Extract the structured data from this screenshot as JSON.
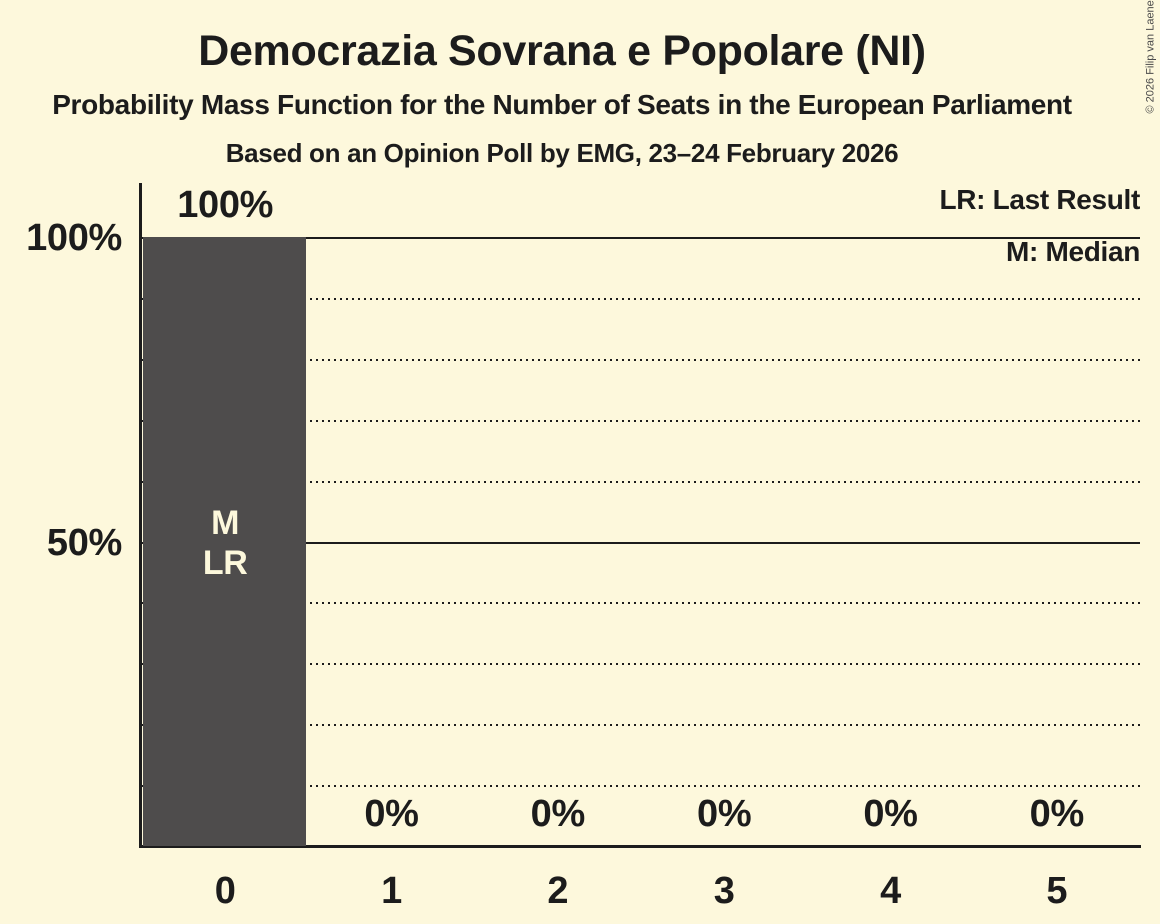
{
  "chart_data": {
    "type": "bar",
    "title": "Democrazia Sovrana e Popolare (NI)",
    "subtitle": "Probability Mass Function for the Number of Seats in the European Parliament",
    "source_line": "Based on an Opinion Poll by EMG, 23–24 February 2026",
    "categories": [
      "0",
      "1",
      "2",
      "3",
      "4",
      "5"
    ],
    "values": [
      100,
      0,
      0,
      0,
      0,
      0
    ],
    "value_labels": [
      "100%",
      "0%",
      "0%",
      "0%",
      "0%",
      "0%"
    ],
    "bar_annotations": [
      [
        "M",
        "LR"
      ],
      [],
      [],
      [],
      [],
      []
    ],
    "median_seats": "0",
    "last_result_seats": "0",
    "xlabel": "",
    "ylabel": "",
    "ylim": [
      0,
      100
    ],
    "yticks": [
      {
        "value": 100,
        "label": "100%"
      },
      {
        "value": 50,
        "label": "50%"
      }
    ],
    "solid_gridlines": [
      100,
      50
    ],
    "dotted_gridlines": [
      90,
      80,
      70,
      60,
      40,
      30,
      20,
      10
    ],
    "legend": {
      "lr": "LR: Last Result",
      "m": "M: Median"
    },
    "legend_position": "top-right",
    "grid": "horizontal"
  },
  "copyright": "© 2026 Filip van Laenen",
  "colors": {
    "background": "#FDF8DC",
    "bar": "#4E4C4C",
    "text": "#1C1C1C",
    "bar_label_text": "#FDF8DC",
    "gridline": "#1C1C1C"
  }
}
